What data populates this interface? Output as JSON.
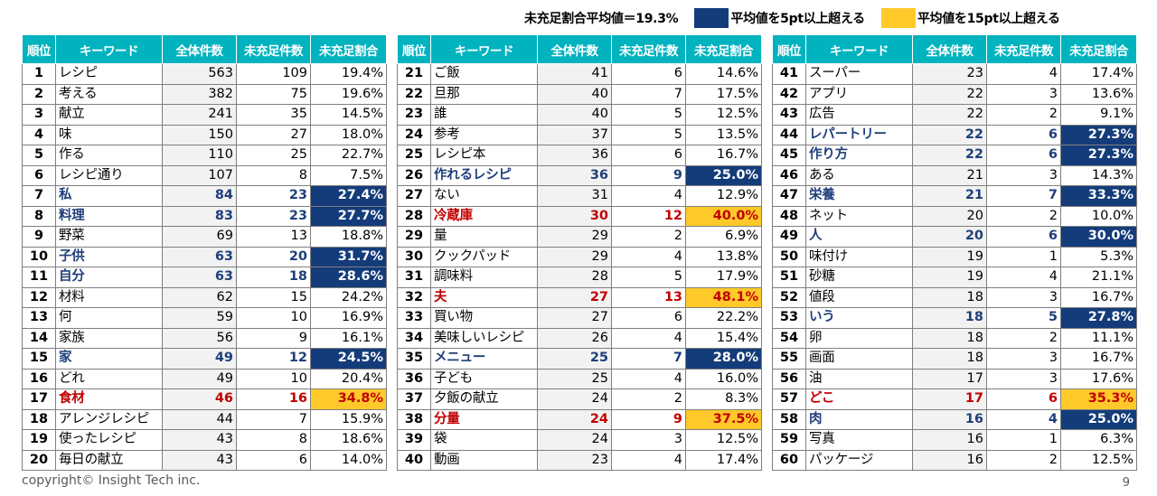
{
  "legend": {
    "average_label": "未充足割合平均値＝19.3%",
    "blue_label": "平均値を5pt以上超える",
    "yellow_label": "平均値を15pt以上超える",
    "blue_color": "#143c7a",
    "yellow_color": "#ffc929"
  },
  "headers": [
    "順位",
    "キーワード",
    "全体件数",
    "未充足件数",
    "未充足割合"
  ],
  "tables": [
    {
      "rows": [
        {
          "rank": "1",
          "keyword": "レシピ",
          "total": "563",
          "unmet": "109",
          "ratio": "19.4%",
          "hl": ""
        },
        {
          "rank": "2",
          "keyword": "考える",
          "total": "382",
          "unmet": "75",
          "ratio": "19.6%",
          "hl": ""
        },
        {
          "rank": "3",
          "keyword": "献立",
          "total": "241",
          "unmet": "35",
          "ratio": "14.5%",
          "hl": ""
        },
        {
          "rank": "4",
          "keyword": "味",
          "total": "150",
          "unmet": "27",
          "ratio": "18.0%",
          "hl": ""
        },
        {
          "rank": "5",
          "keyword": "作る",
          "total": "110",
          "unmet": "25",
          "ratio": "22.7%",
          "hl": ""
        },
        {
          "rank": "6",
          "keyword": "レシピ通り",
          "total": "107",
          "unmet": "8",
          "ratio": "7.5%",
          "hl": ""
        },
        {
          "rank": "7",
          "keyword": "私",
          "total": "84",
          "unmet": "23",
          "ratio": "27.4%",
          "hl": "blue"
        },
        {
          "rank": "8",
          "keyword": "料理",
          "total": "83",
          "unmet": "23",
          "ratio": "27.7%",
          "hl": "blue"
        },
        {
          "rank": "9",
          "keyword": "野菜",
          "total": "69",
          "unmet": "13",
          "ratio": "18.8%",
          "hl": ""
        },
        {
          "rank": "10",
          "keyword": "子供",
          "total": "63",
          "unmet": "20",
          "ratio": "31.7%",
          "hl": "blue"
        },
        {
          "rank": "11",
          "keyword": "自分",
          "total": "63",
          "unmet": "18",
          "ratio": "28.6%",
          "hl": "blue"
        },
        {
          "rank": "12",
          "keyword": "材料",
          "total": "62",
          "unmet": "15",
          "ratio": "24.2%",
          "hl": ""
        },
        {
          "rank": "13",
          "keyword": "何",
          "total": "59",
          "unmet": "10",
          "ratio": "16.9%",
          "hl": ""
        },
        {
          "rank": "14",
          "keyword": "家族",
          "total": "56",
          "unmet": "9",
          "ratio": "16.1%",
          "hl": ""
        },
        {
          "rank": "15",
          "keyword": "家",
          "total": "49",
          "unmet": "12",
          "ratio": "24.5%",
          "hl": "blue"
        },
        {
          "rank": "16",
          "keyword": "どれ",
          "total": "49",
          "unmet": "10",
          "ratio": "20.4%",
          "hl": ""
        },
        {
          "rank": "17",
          "keyword": "食材",
          "total": "46",
          "unmet": "16",
          "ratio": "34.8%",
          "hl": "red"
        },
        {
          "rank": "18",
          "keyword": "アレンジレシピ",
          "total": "44",
          "unmet": "7",
          "ratio": "15.9%",
          "hl": ""
        },
        {
          "rank": "19",
          "keyword": "使ったレシピ",
          "total": "43",
          "unmet": "8",
          "ratio": "18.6%",
          "hl": ""
        },
        {
          "rank": "20",
          "keyword": "毎日の献立",
          "total": "43",
          "unmet": "6",
          "ratio": "14.0%",
          "hl": ""
        }
      ]
    },
    {
      "rows": [
        {
          "rank": "21",
          "keyword": "ご飯",
          "total": "41",
          "unmet": "6",
          "ratio": "14.6%",
          "hl": ""
        },
        {
          "rank": "22",
          "keyword": "旦那",
          "total": "40",
          "unmet": "7",
          "ratio": "17.5%",
          "hl": ""
        },
        {
          "rank": "23",
          "keyword": "誰",
          "total": "40",
          "unmet": "5",
          "ratio": "12.5%",
          "hl": ""
        },
        {
          "rank": "24",
          "keyword": "参考",
          "total": "37",
          "unmet": "5",
          "ratio": "13.5%",
          "hl": ""
        },
        {
          "rank": "25",
          "keyword": "レシピ本",
          "total": "36",
          "unmet": "6",
          "ratio": "16.7%",
          "hl": ""
        },
        {
          "rank": "26",
          "keyword": "作れるレシピ",
          "total": "36",
          "unmet": "9",
          "ratio": "25.0%",
          "hl": "blue"
        },
        {
          "rank": "27",
          "keyword": "ない",
          "total": "31",
          "unmet": "4",
          "ratio": "12.9%",
          "hl": ""
        },
        {
          "rank": "28",
          "keyword": "冷蔵庫",
          "total": "30",
          "unmet": "12",
          "ratio": "40.0%",
          "hl": "red"
        },
        {
          "rank": "29",
          "keyword": "量",
          "total": "29",
          "unmet": "2",
          "ratio": "6.9%",
          "hl": ""
        },
        {
          "rank": "30",
          "keyword": "クックパッド",
          "total": "29",
          "unmet": "4",
          "ratio": "13.8%",
          "hl": ""
        },
        {
          "rank": "31",
          "keyword": "調味料",
          "total": "28",
          "unmet": "5",
          "ratio": "17.9%",
          "hl": ""
        },
        {
          "rank": "32",
          "keyword": "夫",
          "total": "27",
          "unmet": "13",
          "ratio": "48.1%",
          "hl": "red"
        },
        {
          "rank": "33",
          "keyword": "買い物",
          "total": "27",
          "unmet": "6",
          "ratio": "22.2%",
          "hl": ""
        },
        {
          "rank": "34",
          "keyword": "美味しいレシピ",
          "total": "26",
          "unmet": "4",
          "ratio": "15.4%",
          "hl": ""
        },
        {
          "rank": "35",
          "keyword": "メニュー",
          "total": "25",
          "unmet": "7",
          "ratio": "28.0%",
          "hl": "blue"
        },
        {
          "rank": "36",
          "keyword": "子ども",
          "total": "25",
          "unmet": "4",
          "ratio": "16.0%",
          "hl": ""
        },
        {
          "rank": "37",
          "keyword": "夕飯の献立",
          "total": "24",
          "unmet": "2",
          "ratio": "8.3%",
          "hl": ""
        },
        {
          "rank": "38",
          "keyword": "分量",
          "total": "24",
          "unmet": "9",
          "ratio": "37.5%",
          "hl": "red"
        },
        {
          "rank": "39",
          "keyword": "袋",
          "total": "24",
          "unmet": "3",
          "ratio": "12.5%",
          "hl": ""
        },
        {
          "rank": "40",
          "keyword": "動画",
          "total": "23",
          "unmet": "4",
          "ratio": "17.4%",
          "hl": ""
        }
      ]
    },
    {
      "rows": [
        {
          "rank": "41",
          "keyword": "スーパー",
          "total": "23",
          "unmet": "4",
          "ratio": "17.4%",
          "hl": ""
        },
        {
          "rank": "42",
          "keyword": "アプリ",
          "total": "22",
          "unmet": "3",
          "ratio": "13.6%",
          "hl": ""
        },
        {
          "rank": "43",
          "keyword": "広告",
          "total": "22",
          "unmet": "2",
          "ratio": "9.1%",
          "hl": ""
        },
        {
          "rank": "44",
          "keyword": "レパートリー",
          "total": "22",
          "unmet": "6",
          "ratio": "27.3%",
          "hl": "blue"
        },
        {
          "rank": "45",
          "keyword": "作り方",
          "total": "22",
          "unmet": "6",
          "ratio": "27.3%",
          "hl": "blue"
        },
        {
          "rank": "46",
          "keyword": "ある",
          "total": "21",
          "unmet": "3",
          "ratio": "14.3%",
          "hl": ""
        },
        {
          "rank": "47",
          "keyword": "栄養",
          "total": "21",
          "unmet": "7",
          "ratio": "33.3%",
          "hl": "blue"
        },
        {
          "rank": "48",
          "keyword": "ネット",
          "total": "20",
          "unmet": "2",
          "ratio": "10.0%",
          "hl": ""
        },
        {
          "rank": "49",
          "keyword": "人",
          "total": "20",
          "unmet": "6",
          "ratio": "30.0%",
          "hl": "blue"
        },
        {
          "rank": "50",
          "keyword": "味付け",
          "total": "19",
          "unmet": "1",
          "ratio": "5.3%",
          "hl": ""
        },
        {
          "rank": "51",
          "keyword": "砂糖",
          "total": "19",
          "unmet": "4",
          "ratio": "21.1%",
          "hl": ""
        },
        {
          "rank": "52",
          "keyword": "値段",
          "total": "18",
          "unmet": "3",
          "ratio": "16.7%",
          "hl": ""
        },
        {
          "rank": "53",
          "keyword": "いう",
          "total": "18",
          "unmet": "5",
          "ratio": "27.8%",
          "hl": "blue"
        },
        {
          "rank": "54",
          "keyword": "卵",
          "total": "18",
          "unmet": "2",
          "ratio": "11.1%",
          "hl": ""
        },
        {
          "rank": "55",
          "keyword": "画面",
          "total": "18",
          "unmet": "3",
          "ratio": "16.7%",
          "hl": ""
        },
        {
          "rank": "56",
          "keyword": "油",
          "total": "17",
          "unmet": "3",
          "ratio": "17.6%",
          "hl": ""
        },
        {
          "rank": "57",
          "keyword": "どこ",
          "total": "17",
          "unmet": "6",
          "ratio": "35.3%",
          "hl": "red"
        },
        {
          "rank": "58",
          "keyword": "肉",
          "total": "16",
          "unmet": "4",
          "ratio": "25.0%",
          "hl": "blue"
        },
        {
          "rank": "59",
          "keyword": "写真",
          "total": "16",
          "unmet": "1",
          "ratio": "6.3%",
          "hl": ""
        },
        {
          "rank": "60",
          "keyword": "パッケージ",
          "total": "16",
          "unmet": "2",
          "ratio": "12.5%",
          "hl": ""
        }
      ]
    }
  ],
  "footer": {
    "copyright": "copyright© Insight Tech inc.",
    "page": "9"
  }
}
